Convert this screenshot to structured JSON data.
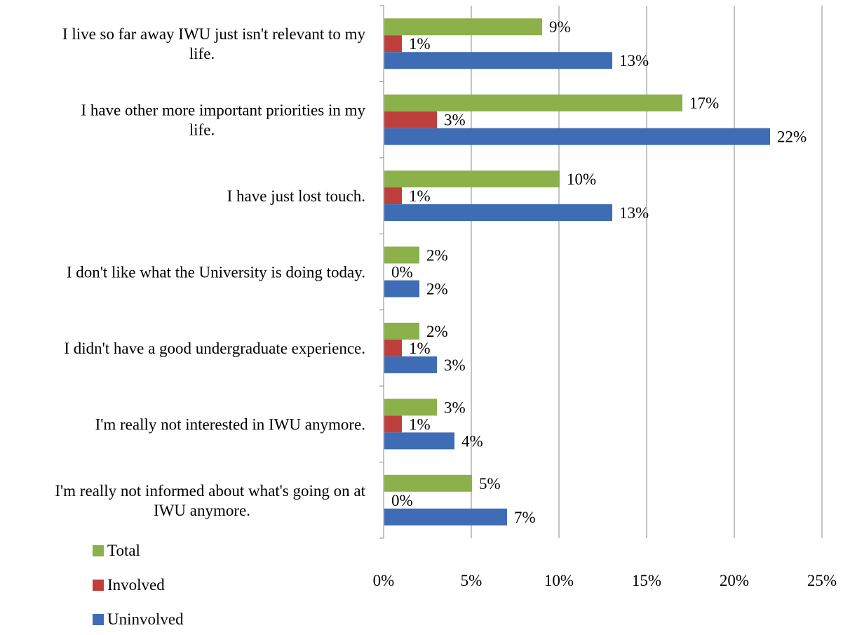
{
  "chart_data": {
    "type": "bar",
    "orientation": "horizontal",
    "categories": [
      [
        "I live so far away IWU just isn't relevant to my",
        "life."
      ],
      [
        "I have other more important priorities in my",
        "life."
      ],
      [
        "I have just lost touch."
      ],
      [
        "I don't like what the University is doing today."
      ],
      [
        "I didn't have a good undergraduate experience."
      ],
      [
        "I'm really not interested in IWU anymore."
      ],
      [
        "I'm really not informed about what's going on at",
        "IWU anymore."
      ]
    ],
    "series": [
      {
        "name": "Total",
        "color": "#8CB04A",
        "values": [
          9,
          17,
          10,
          2,
          2,
          3,
          5
        ],
        "labels": [
          "9%",
          "17%",
          "10%",
          "2%",
          "2%",
          "3%",
          "5%"
        ]
      },
      {
        "name": "Involved",
        "color": "#BE3F3B",
        "values": [
          1,
          3,
          1,
          0,
          1,
          1,
          0
        ],
        "labels": [
          "1%",
          "3%",
          "1%",
          "0%",
          "1%",
          "1%",
          "0%"
        ]
      },
      {
        "name": "Uninvolved",
        "color": "#3E6DB5",
        "values": [
          13,
          22,
          13,
          2,
          3,
          4,
          7
        ],
        "labels": [
          "13%",
          "22%",
          "13%",
          "2%",
          "3%",
          "4%",
          "7%"
        ]
      }
    ],
    "xlim": [
      0,
      25
    ],
    "x_ticks": [
      "0%",
      "5%",
      "10%",
      "15%",
      "20%",
      "25%"
    ],
    "x_tick_values": [
      0,
      5,
      10,
      15,
      20,
      25
    ],
    "grid": "vertical",
    "legend_position": "bottom-left"
  }
}
